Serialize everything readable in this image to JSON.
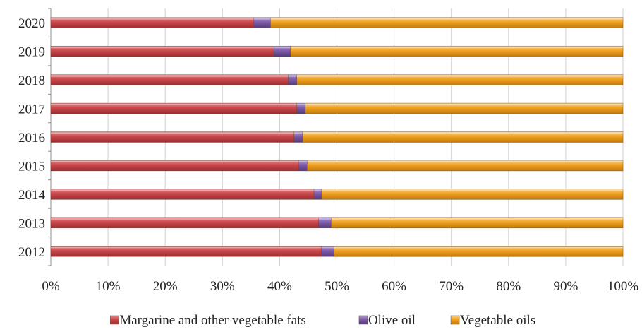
{
  "chart_data": {
    "type": "bar",
    "orientation": "horizontal",
    "stacked": "percent",
    "title": "",
    "xlabel": "",
    "ylabel": "",
    "categories": [
      "2020",
      "2019",
      "2018",
      "2017",
      "2016",
      "2015",
      "2014",
      "2013",
      "2012"
    ],
    "series": [
      {
        "name": "Margarine and other vegetable fats",
        "color": "#c9474b",
        "values": [
          35.5,
          39.0,
          41.5,
          43.0,
          42.5,
          43.3,
          46.0,
          46.8,
          47.3
        ]
      },
      {
        "name": "Olive oil",
        "color": "#7e5aa8",
        "values": [
          2.9,
          2.9,
          1.5,
          1.5,
          1.5,
          1.5,
          1.3,
          2.2,
          2.2
        ]
      },
      {
        "name": "Vegetable oils",
        "color": "#f0a020",
        "values": [
          61.6,
          58.1,
          57.0,
          55.5,
          56.0,
          55.2,
          52.7,
          51.0,
          50.5
        ]
      }
    ],
    "xlim": [
      0,
      100
    ],
    "x_ticks": [
      "0%",
      "10%",
      "20%",
      "30%",
      "40%",
      "50%",
      "60%",
      "70%",
      "80%",
      "90%",
      "100%"
    ],
    "grid": "vertical",
    "legend_position": "bottom"
  }
}
